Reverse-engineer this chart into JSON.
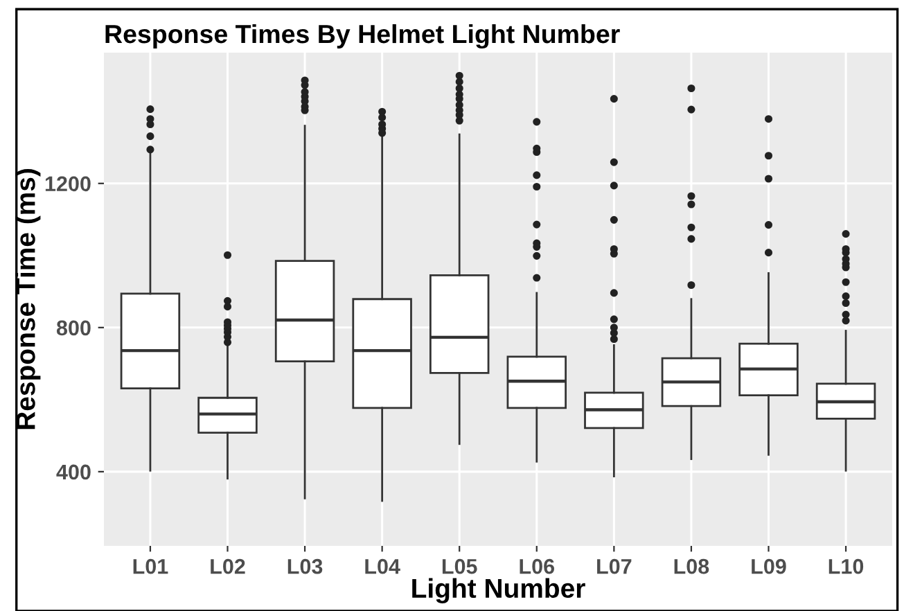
{
  "chart_data": {
    "type": "box",
    "title": "Response Times By Helmet Light Number",
    "xlabel": "Light Number",
    "ylabel": "Response Time (ms)",
    "categories": [
      "L01",
      "L02",
      "L03",
      "L04",
      "L05",
      "L06",
      "L07",
      "L08",
      "L09",
      "L10"
    ],
    "boxes": [
      {
        "low": 403,
        "q1": 631,
        "median": 736,
        "q3": 894,
        "high": 1285,
        "outliers": [
          1294,
          1331,
          1364,
          1379,
          1406
        ]
      },
      {
        "low": 381,
        "q1": 508,
        "median": 560,
        "q3": 605,
        "high": 755,
        "outliers": [
          759,
          774,
          787,
          797,
          806,
          815,
          858,
          874,
          1001
        ]
      },
      {
        "low": 326,
        "q1": 706,
        "median": 821,
        "q3": 985,
        "high": 1360,
        "outliers": [
          1403,
          1413,
          1428,
          1441,
          1454,
          1473,
          1486
        ]
      },
      {
        "low": 319,
        "q1": 577,
        "median": 736,
        "q3": 879,
        "high": 1330,
        "outliers": [
          1340,
          1352,
          1364,
          1383,
          1399
        ]
      },
      {
        "low": 477,
        "q1": 674,
        "median": 773,
        "q3": 945,
        "high": 1336,
        "outliers": [
          1374,
          1390,
          1403,
          1418,
          1435,
          1447,
          1464,
          1482,
          1499
        ]
      },
      {
        "low": 428,
        "q1": 577,
        "median": 651,
        "q3": 719,
        "high": 896,
        "outliers": [
          938,
          999,
          1024,
          1034,
          1086,
          1191,
          1223,
          1287,
          1297,
          1371
        ]
      },
      {
        "low": 387,
        "q1": 521,
        "median": 572,
        "q3": 619,
        "high": 751,
        "outliers": [
          768,
          785,
          800,
          823,
          896,
          1005,
          1018,
          1099,
          1194,
          1259,
          1435
        ]
      },
      {
        "low": 435,
        "q1": 582,
        "median": 649,
        "q3": 715,
        "high": 879,
        "outliers": [
          918,
          1046,
          1078,
          1142,
          1165,
          1405,
          1464
        ]
      },
      {
        "low": 447,
        "q1": 612,
        "median": 685,
        "q3": 755,
        "high": 951,
        "outliers": [
          1008,
          1085,
          1213,
          1277,
          1379
        ]
      },
      {
        "low": 403,
        "q1": 547,
        "median": 594,
        "q3": 644,
        "high": 791,
        "outliers": [
          819,
          836,
          868,
          887,
          926,
          967,
          977,
          990,
          1008,
          1018,
          1060
        ]
      }
    ],
    "ylim": [
      194,
      1563
    ],
    "yticks": [
      400,
      800,
      1200
    ],
    "grid": true,
    "legend": false
  }
}
